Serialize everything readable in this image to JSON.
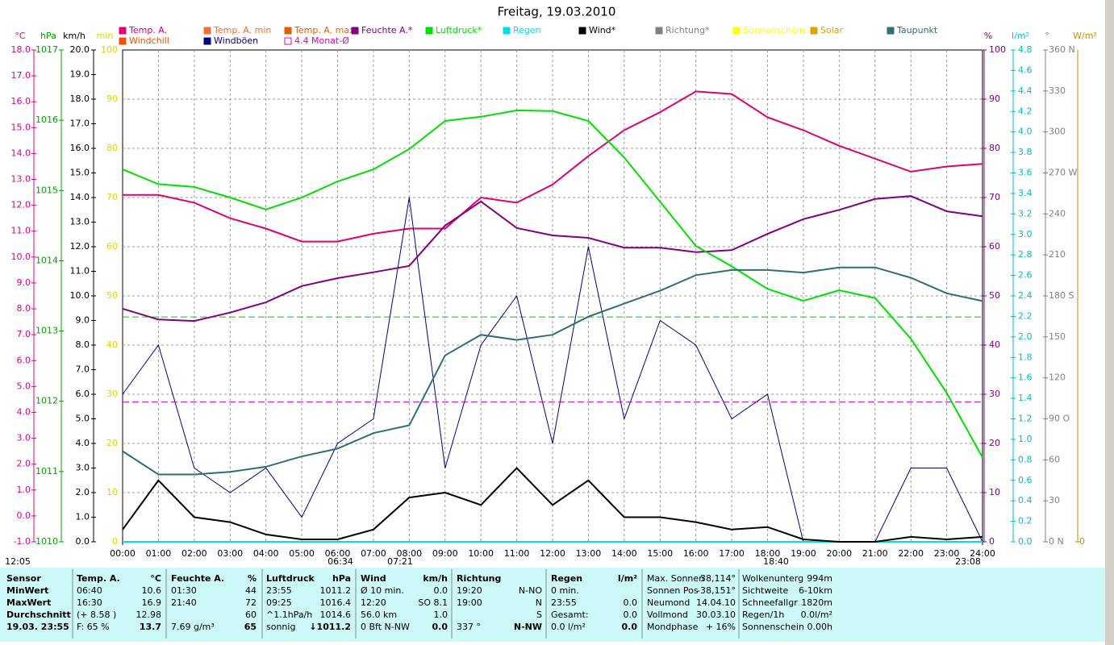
{
  "chart_data": {
    "type": "line",
    "title": "Freitag, 19.03.2010",
    "grid": true,
    "x": [
      0,
      1,
      2,
      3,
      4,
      5,
      6,
      7,
      8,
      9,
      10,
      11,
      12,
      13,
      14,
      15,
      16,
      17,
      18,
      19,
      20,
      21,
      22,
      23,
      24
    ],
    "xlim": [
      0,
      24
    ],
    "xticks": [
      {
        "value": 0,
        "label": "00:00"
      },
      {
        "value": 1,
        "label": "01:00"
      },
      {
        "value": 2,
        "label": "02:00"
      },
      {
        "value": 3,
        "label": "03:00"
      },
      {
        "value": 4,
        "label": "04:00"
      },
      {
        "value": 5,
        "label": "05:00"
      },
      {
        "value": 6,
        "label": "06:00"
      },
      {
        "value": 7,
        "label": "07:00"
      },
      {
        "value": 8,
        "label": "08:00"
      },
      {
        "value": 9,
        "label": "09:00"
      },
      {
        "value": 10,
        "label": "10:00"
      },
      {
        "value": 11,
        "label": "11:00"
      },
      {
        "value": 12,
        "label": "12:00"
      },
      {
        "value": 13,
        "label": "13:00"
      },
      {
        "value": 14,
        "label": "14:00"
      },
      {
        "value": 15,
        "label": "15:00"
      },
      {
        "value": 16,
        "label": "16:00"
      },
      {
        "value": 17,
        "label": "17:00"
      },
      {
        "value": 18,
        "label": "18:00"
      },
      {
        "value": 19,
        "label": "19:00"
      },
      {
        "value": 20,
        "label": "20:00"
      },
      {
        "value": 21,
        "label": "21:00"
      },
      {
        "value": 22,
        "label": "22:00"
      },
      {
        "value": 23,
        "label": "23:00"
      },
      {
        "value": 24,
        "label": "24:00"
      }
    ],
    "axes": [
      {
        "label": "°C",
        "color": "#e0007f",
        "lim": [
          -1,
          18
        ],
        "ticks": [
          {
            "value": -1,
            "label": "-1.0"
          },
          {
            "value": 0,
            "label": "0.0"
          },
          {
            "value": 1,
            "label": "1.0"
          },
          {
            "value": 2,
            "label": "2.0"
          },
          {
            "value": 3,
            "label": "3.0"
          },
          {
            "value": 4,
            "label": "4.0"
          },
          {
            "value": 5,
            "label": "5.0"
          },
          {
            "value": 6,
            "label": "6.0"
          },
          {
            "value": 7,
            "label": "7.0"
          },
          {
            "value": 8,
            "label": "8.0"
          },
          {
            "value": 9,
            "label": "9.0"
          },
          {
            "value": 10,
            "label": "10.0"
          },
          {
            "value": 11,
            "label": "11.0"
          },
          {
            "value": 12,
            "label": "12.0"
          },
          {
            "value": 13,
            "label": "13.0"
          },
          {
            "value": 14,
            "label": "14.0"
          },
          {
            "value": 15,
            "label": "15.0"
          },
          {
            "value": 16,
            "label": "16.0"
          },
          {
            "value": 17,
            "label": "17.0"
          },
          {
            "value": 18,
            "label": "18.0"
          }
        ]
      },
      {
        "label": "hPa",
        "color": "#00a000",
        "lim": [
          1010,
          1017
        ],
        "ticks": [
          1010,
          1011,
          1012,
          1013,
          1014,
          1015,
          1016,
          1017
        ],
        "mean_line": 1013.2
      },
      {
        "label": "km/h",
        "color": "#000000",
        "lim": [
          0,
          20
        ],
        "ticks": [
          {
            "value": 0,
            "label": "0.0"
          },
          {
            "value": 1,
            "label": "1.0"
          },
          {
            "value": 2,
            "label": "2.0"
          },
          {
            "value": 3,
            "label": "3.0"
          },
          {
            "value": 4,
            "label": "4.0"
          },
          {
            "value": 5,
            "label": "5.0"
          },
          {
            "value": 6,
            "label": "6.0"
          },
          {
            "value": 7,
            "label": "7.0"
          },
          {
            "value": 8,
            "label": "8.0"
          },
          {
            "value": 9,
            "label": "9.0"
          },
          {
            "value": 10,
            "label": "10.0"
          },
          {
            "value": 11,
            "label": "11.0"
          },
          {
            "value": 12,
            "label": "12.0"
          },
          {
            "value": 13,
            "label": "13.0"
          },
          {
            "value": 14,
            "label": "14.0"
          },
          {
            "value": 15,
            "label": "15.0"
          },
          {
            "value": 16,
            "label": "16.0"
          },
          {
            "value": 17,
            "label": "17.0"
          },
          {
            "value": 18,
            "label": "18.0"
          },
          {
            "value": 19,
            "label": "19.0"
          },
          {
            "value": 20,
            "label": "20.0"
          }
        ]
      },
      {
        "label": "min",
        "color": "#d8d800",
        "lim": [
          0,
          100
        ],
        "ticks": [
          0,
          10,
          20,
          30,
          40,
          50,
          60,
          70,
          80,
          90,
          100
        ]
      },
      {
        "label": "%",
        "color": "#800080",
        "lim": [
          0,
          100
        ],
        "ticks": [
          0,
          10,
          20,
          30,
          40,
          50,
          60,
          70,
          80,
          90,
          100
        ]
      },
      {
        "label": "l/m²",
        "color": "#00c0c0",
        "lim": [
          0,
          4.8
        ],
        "ticks": [
          {
            "value": 0,
            "label": "0.0"
          },
          {
            "value": 0.2,
            "label": "0.2"
          },
          {
            "value": 0.4,
            "label": "0.4"
          },
          {
            "value": 0.6,
            "label": "0.6"
          },
          {
            "value": 0.8,
            "label": "0.8"
          },
          {
            "value": 1,
            "label": "1.0"
          },
          {
            "value": 1.2,
            "label": "1.2"
          },
          {
            "value": 1.4,
            "label": "1.4"
          },
          {
            "value": 1.6,
            "label": "1.6"
          },
          {
            "value": 1.8,
            "label": "1.8"
          },
          {
            "value": 2,
            "label": "2.0"
          },
          {
            "value": 2.2,
            "label": "2.2"
          },
          {
            "value": 2.4,
            "label": "2.4"
          },
          {
            "value": 2.6,
            "label": "2.6"
          },
          {
            "value": 2.8,
            "label": "2.8"
          },
          {
            "value": 3,
            "label": "3.0"
          },
          {
            "value": 3.2,
            "label": "3.2"
          },
          {
            "value": 3.4,
            "label": "3.4"
          },
          {
            "value": 3.6,
            "label": "3.6"
          },
          {
            "value": 3.8,
            "label": "3.8"
          },
          {
            "value": 4,
            "label": "4.0"
          },
          {
            "value": 4.2,
            "label": "4.2"
          },
          {
            "value": 4.4,
            "label": "4.4"
          },
          {
            "value": 4.6,
            "label": "4.6"
          },
          {
            "value": 4.8,
            "label": "4.8"
          }
        ]
      },
      {
        "label": "°",
        "color": "#808080",
        "lim": [
          0,
          360
        ],
        "ticks": [
          {
            "value": 0,
            "label": "0  N"
          },
          30,
          60,
          {
            "value": 90,
            "label": "90  O"
          },
          120,
          150,
          {
            "value": 180,
            "label": "180 S"
          },
          210,
          240,
          {
            "value": 270,
            "label": "270 W"
          },
          300,
          330,
          {
            "value": 360,
            "label": "360 N"
          }
        ]
      },
      {
        "label": "W/m²",
        "color": "#c09000",
        "ticks": [
          0
        ]
      }
    ],
    "series": [
      {
        "name": "Temp. A.",
        "color": "#e0006f",
        "axis": 0,
        "values": [
          12.4,
          12.4,
          12.1,
          11.5,
          11.1,
          10.6,
          10.6,
          10.9,
          11.1,
          11.1,
          12.3,
          12.1,
          12.8,
          13.9,
          14.9,
          15.6,
          16.4,
          16.3,
          15.4,
          14.9,
          14.3,
          13.8,
          13.3,
          13.5,
          13.6
        ]
      },
      {
        "name": "Windchill",
        "color": "#f05000"
      },
      {
        "name": "Temp. A. min",
        "color": "#f07030"
      },
      {
        "name": "Windböen",
        "color": "#000080",
        "axis": 2,
        "values": [
          6,
          8,
          3,
          2,
          3,
          1,
          4,
          5,
          14,
          3,
          8,
          10,
          4,
          12,
          5,
          9,
          8,
          5,
          6,
          0,
          0,
          0,
          3,
          3,
          0
        ]
      },
      {
        "name": "Temp. A. max",
        "color": "#e06000"
      },
      {
        "name": "4.4 Monat-Ø",
        "color": "#e000c0",
        "axis": 0,
        "level": 4.4
      },
      {
        "name": "Feuchte A.*",
        "color": "#800080",
        "axis": 4,
        "values": [
          47.4,
          45.2,
          44.9,
          46.6,
          48.7,
          52,
          53.6,
          54.8,
          56.1,
          64.3,
          69.2,
          63.8,
          62.3,
          61.8,
          59.8,
          59.8,
          58.9,
          59.3,
          62.6,
          65.6,
          67.5,
          69.7,
          70.3,
          67.2,
          66.2
        ]
      },
      {
        "name": "Luftdruck*",
        "color": "#00e000",
        "axis": 1,
        "values": [
          1015.3,
          1015.09,
          1015.05,
          1014.9,
          1014.73,
          1014.9,
          1015.13,
          1015.3,
          1015.59,
          1015.99,
          1016.05,
          1016.14,
          1016.13,
          1015.99,
          1015.47,
          1014.84,
          1014.21,
          1013.92,
          1013.6,
          1013.43,
          1013.58,
          1013.47,
          1012.89,
          1012.12,
          1011.2
        ]
      },
      {
        "name": "Regen",
        "color": "#00e0e0",
        "axis": 5,
        "values": [
          0,
          0,
          0,
          0,
          0,
          0,
          0,
          0,
          0,
          0,
          0,
          0,
          0,
          0,
          0,
          0,
          0,
          0,
          0,
          0,
          0,
          0,
          0,
          0,
          0
        ]
      },
      {
        "name": "Wind*",
        "color": "#000000",
        "axis": 2,
        "values": [
          0.5,
          2.5,
          1,
          0.8,
          0.3,
          0.1,
          0.1,
          0.5,
          1.8,
          2,
          1.5,
          3,
          1.5,
          2.5,
          1,
          1,
          0.8,
          0.5,
          0.6,
          0.1,
          0,
          0,
          0.2,
          0.1,
          0.2
        ]
      },
      {
        "name": "Richtung*",
        "color": "#808080"
      },
      {
        "name": "Sonnenschein",
        "color": "#ffff00"
      },
      {
        "name": "Solar",
        "color": "#e0a000"
      },
      {
        "name": "Taupunkt",
        "color": "#2f6f6f",
        "axis": 0,
        "values": [
          2.5,
          1.6,
          1.6,
          1.7,
          1.9,
          2.3,
          2.6,
          3.2,
          3.5,
          6.2,
          7,
          6.8,
          7,
          7.7,
          8.2,
          8.7,
          9.3,
          9.5,
          9.5,
          9.4,
          9.6,
          9.6,
          9.2,
          8.6,
          8.3
        ]
      }
    ],
    "annotations": [
      "12:05",
      "06:34",
      "07:21",
      "18:40",
      "23:08"
    ]
  },
  "info_table": {
    "columns": [
      {
        "rows": [
          {
            "left": "Sensor"
          },
          {
            "left": "MinWert"
          },
          {
            "left": "MaxWert"
          },
          {
            "left": "Durchschnitt"
          },
          {
            "left": "19.03. 23:55"
          }
        ]
      },
      {
        "header": "Temp. A.",
        "unit": "°C",
        "rows": [
          {
            "left": "06:40",
            "right": "10.6"
          },
          {
            "left": "16:30",
            "right": "16.9"
          },
          {
            "left": "(+ 8.58 )",
            "right": "12.98"
          },
          {
            "left": "F: 65 %",
            "right": "13.7"
          }
        ]
      },
      {
        "header": "Feuchte A.",
        "unit": "%",
        "rows": [
          {
            "left": "01:30",
            "right": "44"
          },
          {
            "left": "21:40",
            "right": "72"
          },
          {
            "right": "60"
          },
          {
            "left": "7.69 g/m³",
            "right": "65"
          }
        ]
      },
      {
        "header": "Luftdruck",
        "unit": "hPa",
        "rows": [
          {
            "left": "23:55",
            "right": "1011.2"
          },
          {
            "left": "09:25",
            "right": "1016.4"
          },
          {
            "left": "^1.1hPa/h",
            "right": "1014.6"
          },
          {
            "left": "sonnig",
            "right": "↓1011.2"
          }
        ]
      },
      {
        "header": "Wind",
        "unit": "km/h",
        "rows": [
          {
            "left": "Ø 10 min.",
            "right": "0.0"
          },
          {
            "left": "12:20",
            "right": "SO 8.1"
          },
          {
            "left": "56.0 km",
            "right": "1.0"
          },
          {
            "left": "0 Bft N-NW",
            "right": "0.0"
          }
        ]
      },
      {
        "header": "Richtung",
        "rows": [
          {
            "left": "19:20",
            "right": "N-NO"
          },
          {
            "left": "19:00",
            "right": "N"
          },
          {
            "right": "S"
          },
          {
            "left": "337 °",
            "right": "N-NW"
          }
        ]
      },
      {
        "header": "Regen",
        "unit": "l/m²",
        "rows": [
          {
            "left": "0 min."
          },
          {
            "left": "23:55",
            "right": "0.0"
          },
          {
            "left": "Gesamt:",
            "right": "0.0"
          },
          {
            "left": "0.0 l/m²",
            "right": "0.0"
          }
        ]
      },
      {
        "rows": [
          {
            "left": "Max. Sonnen",
            "right": "38,114°"
          },
          {
            "left": "Sonnen Pos",
            "right": "-38,151°"
          },
          {
            "left": "Neumond",
            "right": "14.04.10"
          },
          {
            "left": "Vollmond",
            "right": "30.03.10"
          },
          {
            "left": "Mondphase",
            "right": "+ 16%"
          }
        ]
      },
      {
        "rows": [
          {
            "left": "Wolkenunterg",
            "right": "994m"
          },
          {
            "left": "Sichtweite",
            "right": "6-10km"
          },
          {
            "left": "Schneefallgr",
            "right": "1820m"
          },
          {
            "left": "Regen/1h",
            "right": "0.0l/m²"
          },
          {
            "left": "Sonnenschein",
            "right": "0.00h"
          }
        ]
      }
    ]
  }
}
